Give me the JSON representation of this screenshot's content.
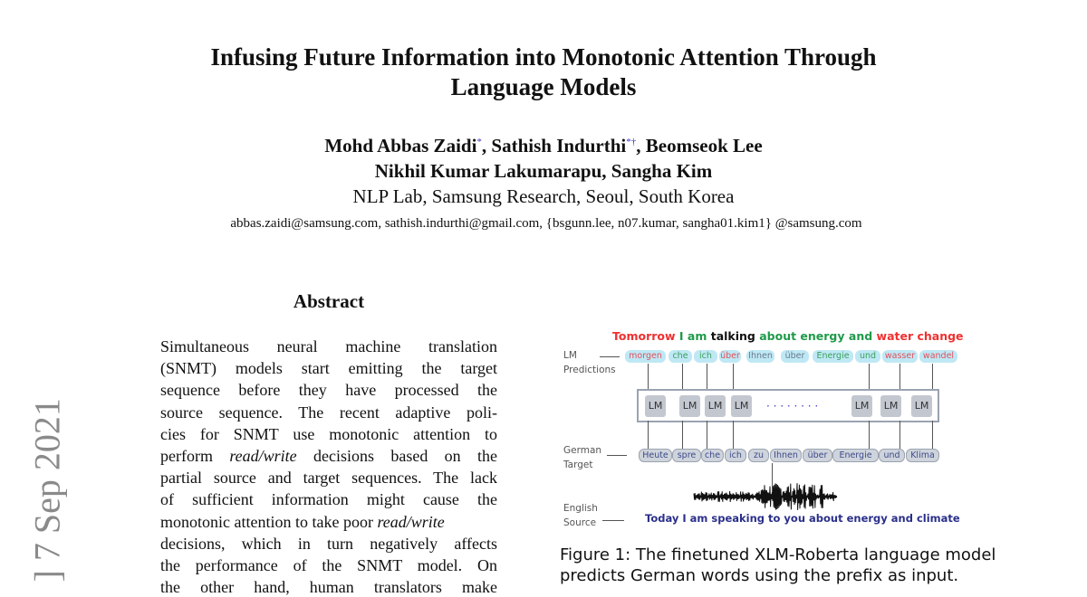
{
  "arxiv_stamp": "] 7 Sep 2021",
  "title": [
    "Infusing Future Information into Monotonic Attention Through",
    "Language Models"
  ],
  "authors": {
    "line1": [
      {
        "name": "Mohd Abbas Zaidi",
        "mark": "*"
      },
      {
        "name": ", Sathish Indurthi",
        "mark": "*†"
      },
      {
        "name": ", Beomseok Lee",
        "mark": ""
      }
    ],
    "line2": "Nikhil Kumar Lakumarapu, Sangha Kim",
    "affiliation": "NLP Lab, Samsung Research, Seoul, South Korea",
    "emails": "abbas.zaidi@samsung.com, sathish.indurthi@gmail.com, {bsgunn.lee, n07.kumar, sangha01.kim1} @samsung.com"
  },
  "abstract": {
    "heading": "Abstract",
    "lines": [
      [
        {
          "t": "Simultaneous neural machine translation"
        }
      ],
      [
        {
          "t": "(SNMT) models start emitting the target"
        }
      ],
      [
        {
          "t": "sequence before they have processed the"
        }
      ],
      [
        {
          "t": "source sequence.  The recent adaptive poli-"
        }
      ],
      [
        {
          "t": "cies for SNMT use monotonic attention to"
        }
      ],
      [
        {
          "t": "perform "
        },
        {
          "t": "read/write",
          "i": true
        },
        {
          "t": " decisions based on the"
        }
      ],
      [
        {
          "t": "partial source and target sequences. The lack"
        }
      ],
      [
        {
          "t": "of sufficient information might cause the"
        }
      ],
      [
        {
          "t": "monotonic attention to take poor "
        },
        {
          "t": "read/write",
          "i": true
        }
      ],
      [
        {
          "t": "decisions, which in turn negatively affects"
        }
      ],
      [
        {
          "t": "the performance of the SNMT model.  On"
        }
      ],
      [
        {
          "t": "the other hand, human translators make"
        }
      ]
    ]
  },
  "figure": {
    "headline": [
      {
        "t": "Tomorrow ",
        "c": "#f03030"
      },
      {
        "t": "I am ",
        "c": "#1f9a4a"
      },
      {
        "t": "talking ",
        "c": "#111111"
      },
      {
        "t": "about energy and ",
        "c": "#1f9a4a"
      },
      {
        "t": "water change",
        "c": "#f03030"
      }
    ],
    "labels": {
      "lm_predictions": [
        "LM",
        "Predictions"
      ],
      "german_target": [
        "German",
        "Target"
      ],
      "english_source": [
        "English",
        "Source"
      ]
    },
    "predictions": [
      {
        "t": "morgen",
        "c": "#e0505a"
      },
      {
        "t": "che",
        "c": "#3aa05a"
      },
      {
        "t": "ich",
        "c": "#3aa05a"
      },
      {
        "t": "über",
        "c": "#e0505a"
      },
      {
        "t": "Ihnen",
        "c": "#6a7a8a"
      },
      {
        "t": "über",
        "c": "#6a7a8a"
      },
      {
        "t": "Energie",
        "c": "#3aa05a"
      },
      {
        "t": "und",
        "c": "#3aa05a"
      },
      {
        "t": "wasser",
        "c": "#e0505a"
      },
      {
        "t": "wandel",
        "c": "#e0505a"
      }
    ],
    "lm_label": "LM",
    "lm_dots": "· · · · · · · ·",
    "target_tokens": [
      "Heute",
      "spre",
      "che",
      "ich",
      "zu",
      "Ihnen",
      "über",
      "Energie",
      "und",
      "Klima"
    ],
    "source_sentence": "Today I am speaking to you about energy and climate",
    "source_color": "#2a2f8a",
    "caption": [
      "Figure 1: The finetuned XLM-Roberta language model",
      "predicts German words using the prefix as input."
    ]
  }
}
